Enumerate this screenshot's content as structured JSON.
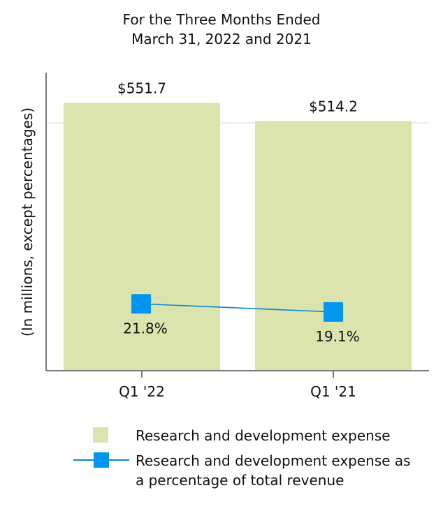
{
  "chart_data": {
    "type": "bar",
    "title": "For the Three Months Ended",
    "subtitle": "March 31, 2022 and 2021",
    "ylabel": "(In millions, except percentages)",
    "xlabel": "",
    "categories": [
      "Q1 '22",
      "Q1 '21"
    ],
    "series": [
      {
        "name": "Research and development expense",
        "kind": "bar",
        "values": [
          551.7,
          514.2
        ],
        "labels": [
          "$551.7",
          "$514.2"
        ],
        "color": "#dbe4ad"
      },
      {
        "name": "Research and development expense as a percentage of total revenue",
        "kind": "line",
        "values": [
          21.8,
          19.1
        ],
        "labels": [
          "21.8%",
          "19.1%"
        ],
        "color": "#0096f0"
      }
    ],
    "ylim": [
      0,
      600
    ],
    "pct_ylim": [
      0,
      100
    ],
    "grid": true,
    "legend_position": "bottom"
  },
  "legend": {
    "bar_label": "Research and development expense",
    "line_label_1": "Research and development expense as",
    "line_label_2": "a percentage of total revenue"
  }
}
